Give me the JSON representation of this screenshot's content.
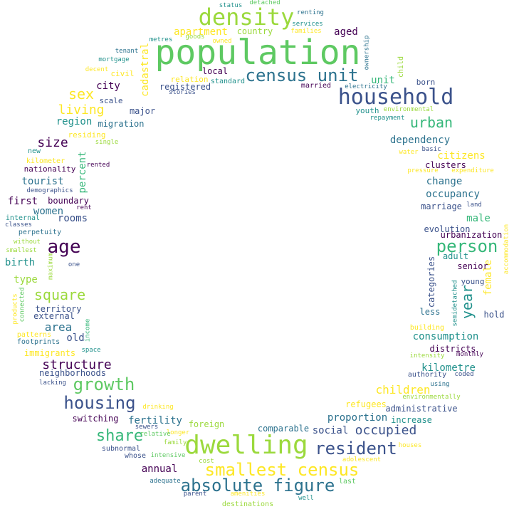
{
  "colors": {
    "background": "#ffffff",
    "palette": [
      "#440154",
      "#3b528b",
      "#21918c",
      "#5ec962",
      "#fde725",
      "#9bd93c",
      "#2c728e",
      "#35b779"
    ]
  },
  "words": {
    "population": "population",
    "density": "density",
    "household": "household",
    "census_unit": "census unit",
    "dwelling": "dwelling",
    "smallest_census": "smallest census",
    "absolute_figure": "absolute figure",
    "resident": "resident",
    "housing": "housing",
    "growth": "growth",
    "age": "age",
    "person": "person",
    "share": "share",
    "urban": "urban",
    "square": "square",
    "structure": "structure",
    "occupied": "occupied",
    "sex": "sex",
    "living": "living",
    "year": "year",
    "children": "children",
    "size": "size",
    "area": "area",
    "apartment": "apartment",
    "proportion": "proportion",
    "fertility": "fertility",
    "occupancy": "occupancy",
    "dependency": "dependency",
    "change": "change",
    "consumption": "consumption",
    "kilometre": "kilometre",
    "social": "social",
    "annual": "annual",
    "citizens": "citizens",
    "aged": "aged",
    "tourist": "tourist",
    "first": "first",
    "women": "women",
    "rooms": "rooms",
    "birth": "birth",
    "region": "region",
    "city": "city",
    "unit": "unit",
    "male": "male",
    "percent": "percent",
    "cadastral": "cadastral",
    "female": "female",
    "country": "country",
    "old": "old",
    "type": "type",
    "foreign": "foreign",
    "districts": "districts",
    "administrative": "administrative",
    "switching": "switching",
    "migration": "migration",
    "major": "major",
    "local": "local",
    "registered": "registered",
    "boundary": "boundary",
    "territory": "territory",
    "external": "external",
    "neighborhoods": "neighborhoods",
    "immigrants": "immigrants",
    "comparable": "comparable",
    "refugees": "refugees",
    "increase": "increase",
    "evolution": "evolution",
    "urbanization": "urbanization",
    "marriage": "marriage",
    "clusters": "clusters",
    "senior": "senior",
    "adult": "adult",
    "categories": "categories",
    "less": "less",
    "hold": "hold",
    "young": "young",
    "building": "building",
    "youth": "youth",
    "born": "born",
    "married": "married",
    "civil": "civil",
    "scale": "scale",
    "residing": "residing",
    "single": "single",
    "nationality": "nationality",
    "rented": "rented",
    "kilometer": "kilometer",
    "new": "new",
    "demographics": "demographics",
    "rent": "rent",
    "internal": "internal",
    "classes": "classes",
    "perpetuity": "perpetuity",
    "without": "without",
    "smallest": "smallest",
    "one": "one",
    "maximum": "maximum",
    "connected": "connected",
    "products": "products",
    "patterns": "patterns",
    "footprints": "footprints",
    "income": "income",
    "space": "space",
    "lacking": "lacking",
    "drinking": "drinking",
    "sewers": "sewers",
    "longer": "longer",
    "family": "family",
    "subnormal": "subnormal",
    "whose": "whose",
    "intensive": "intensive",
    "adequate": "adequate",
    "cost": "cost",
    "parent": "parent",
    "relative": "relative",
    "amenities": "amenities",
    "destinations": "destinations",
    "well": "well",
    "last": "last",
    "adolescent": "adolescent",
    "houses": "houses",
    "environmentally": "environmentally",
    "using": "using",
    "coded": "coded",
    "authority": "authority",
    "monthly": "monthly",
    "intensity": "intensity",
    "semidetached": "semidetached",
    "accommodation": "accommodation",
    "land": "land",
    "expenditure": "expenditure",
    "pressure": "pressure",
    "water": "water",
    "basic": "basic",
    "repayment": "repayment",
    "environmental": "environmental",
    "electricity": "electricity",
    "child": "child",
    "ownership": "ownership",
    "renting": "renting",
    "services": "services",
    "families": "families",
    "detached": "detached",
    "status": "status",
    "goods": "goods",
    "owned": "owned",
    "metres": "metres",
    "tenant": "tenant",
    "mortgage": "mortgage",
    "decent": "decent",
    "relation": "relation",
    "standard": "standard",
    "stories": "stories"
  }
}
